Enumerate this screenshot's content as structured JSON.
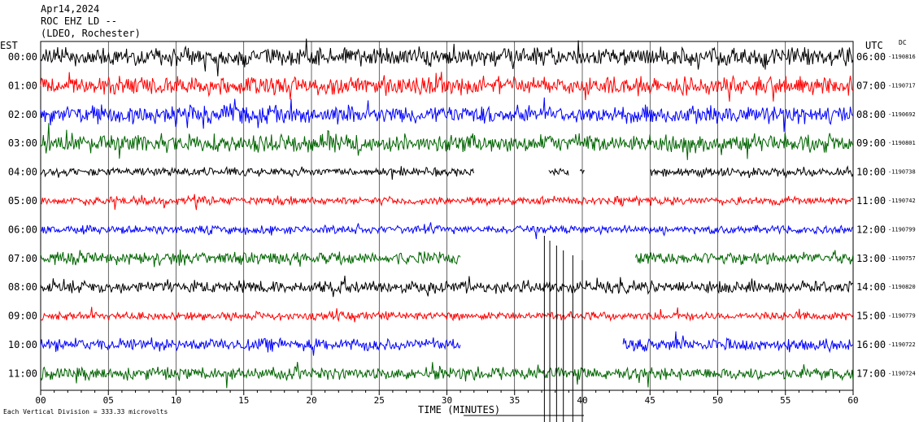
{
  "header": {
    "date": "Apr14,2024",
    "station": "ROC EHZ LD --",
    "network": "(LDEO, Rochester)"
  },
  "left_timezone": "EST",
  "right_timezone": "UTC",
  "dc_label": "DC",
  "footer": {
    "scale_note": "Each Vertical Division = 333.33 microvolts",
    "xlabel": "TIME (MINUTES)"
  },
  "colors": {
    "black": "#000000",
    "red": "#ff0000",
    "blue": "#0000ff",
    "green": "#006400"
  },
  "chart_data": {
    "type": "line",
    "title": "Apr14,2024",
    "xlabel": "TIME (MINUTES)",
    "ylabel": "",
    "xlim": [
      0,
      60
    ],
    "x_ticks": [
      "00",
      "05",
      "10",
      "15",
      "20",
      "25",
      "30",
      "35",
      "40",
      "45",
      "50",
      "55",
      "60"
    ],
    "grid": "vertical lines every 5 minutes",
    "rows": [
      {
        "est": "00:00",
        "utc": "06:00",
        "dc": "1190816",
        "color": "#000000",
        "amplitude": "high",
        "gaps": []
      },
      {
        "est": "01:00",
        "utc": "07:00",
        "dc": "1190717",
        "color": "#ff0000",
        "amplitude": "high",
        "gaps": []
      },
      {
        "est": "02:00",
        "utc": "08:00",
        "dc": "1190692",
        "color": "#0000ff",
        "amplitude": "high",
        "gaps": []
      },
      {
        "est": "03:00",
        "utc": "09:00",
        "dc": "1190801",
        "color": "#006400",
        "amplitude": "high",
        "gaps": []
      },
      {
        "est": "04:00",
        "utc": "10:00",
        "dc": "1190738",
        "color": "#000000",
        "amplitude": "low",
        "gaps": [
          [
            32,
            37.5
          ],
          [
            39,
            39.8
          ],
          [
            40.2,
            45
          ]
        ]
      },
      {
        "est": "05:00",
        "utc": "11:00",
        "dc": "1190742",
        "color": "#ff0000",
        "amplitude": "low",
        "gaps": []
      },
      {
        "est": "06:00",
        "utc": "12:00",
        "dc": "1190799",
        "color": "#0000ff",
        "amplitude": "low",
        "gaps": []
      },
      {
        "est": "07:00",
        "utc": "13:00",
        "dc": "1190757",
        "color": "#006400",
        "amplitude": "medium",
        "gaps": [
          [
            31,
            43.9
          ]
        ]
      },
      {
        "est": "08:00",
        "utc": "14:00",
        "dc": "1190820",
        "color": "#000000",
        "amplitude": "medium",
        "gaps": []
      },
      {
        "est": "09:00",
        "utc": "15:00",
        "dc": "1190779",
        "color": "#ff0000",
        "amplitude": "low",
        "gaps": []
      },
      {
        "est": "10:00",
        "utc": "16:00",
        "dc": "1190722",
        "color": "#0000ff",
        "amplitude": "medium",
        "gaps": [
          [
            31,
            43
          ]
        ]
      },
      {
        "est": "11:00",
        "utc": "17:00",
        "dc": "1190724",
        "color": "#006400",
        "amplitude": "medium",
        "gaps": []
      }
    ]
  }
}
